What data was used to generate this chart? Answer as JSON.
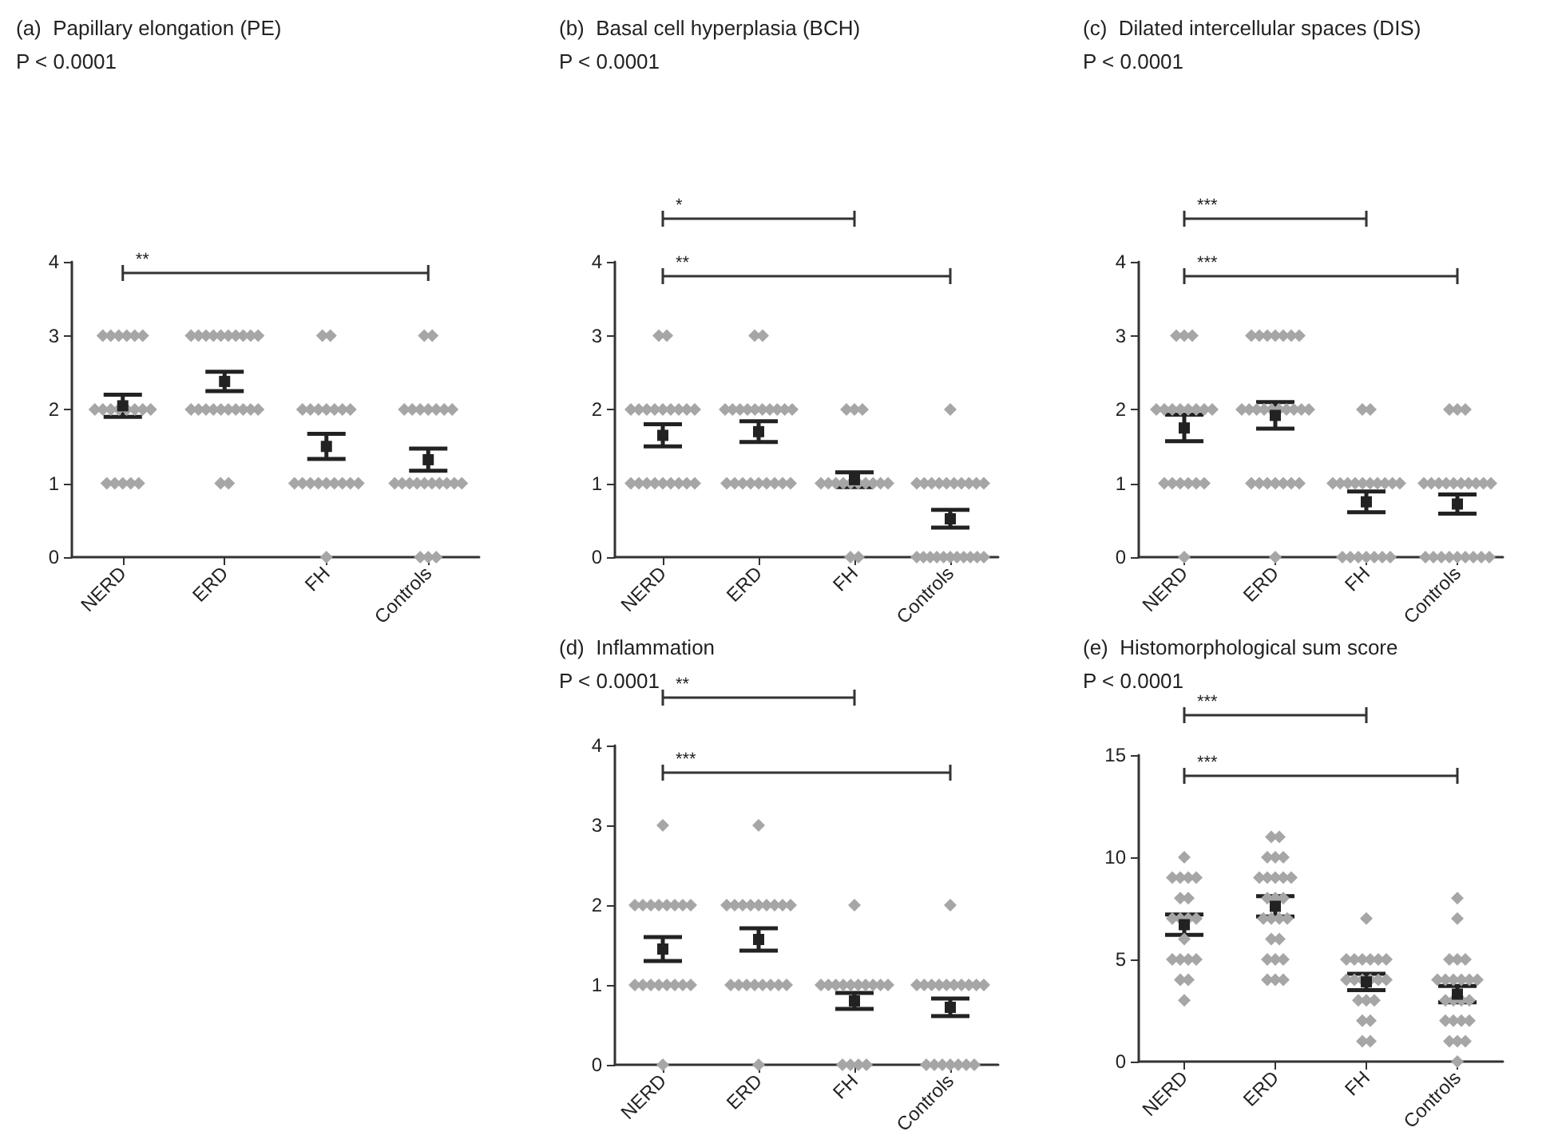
{
  "chart_data": [
    {
      "type": "scatter",
      "title": "(a)  Papillary elongation (PE)",
      "subtitle": "P < 0.0001",
      "categories": [
        "NERD",
        "ERD",
        "FH",
        "Controls"
      ],
      "ylim": [
        0,
        4
      ],
      "yticks": [
        0,
        1,
        2,
        3,
        4
      ],
      "series": [
        {
          "marker": "diamond",
          "color": "#a6a6a6",
          "x": [
            "NERD",
            "NERD",
            "NERD",
            "NERD",
            "NERD",
            "NERD",
            "NERD",
            "NERD",
            "NERD",
            "NERD",
            "NERD",
            "NERD",
            "NERD",
            "NERD",
            "NERD",
            "NERD",
            "NERD",
            "NERD",
            "NERD",
            "ERD",
            "ERD",
            "ERD",
            "ERD",
            "ERD",
            "ERD",
            "ERD",
            "ERD",
            "ERD",
            "ERD",
            "ERD",
            "ERD",
            "ERD",
            "ERD",
            "ERD",
            "ERD",
            "ERD",
            "ERD",
            "ERD",
            "ERD",
            "ERD",
            "ERD",
            "FH",
            "FH",
            "FH",
            "FH",
            "FH",
            "FH",
            "FH",
            "FH",
            "FH",
            "FH",
            "FH",
            "FH",
            "FH",
            "FH",
            "FH",
            "FH",
            "FH",
            "FH",
            "FH",
            "Controls",
            "Controls",
            "Controls",
            "Controls",
            "Controls",
            "Controls",
            "Controls",
            "Controls",
            "Controls",
            "Controls",
            "Controls",
            "Controls",
            "Controls",
            "Controls",
            "Controls",
            "Controls",
            "Controls",
            "Controls",
            "Controls",
            "Controls",
            "Controls",
            "Controls"
          ],
          "values": [
            3,
            3,
            3,
            3,
            3,
            3,
            2,
            2,
            2,
            2,
            2,
            2,
            2,
            2,
            1,
            1,
            1,
            1,
            1,
            3,
            3,
            3,
            3,
            3,
            3,
            3,
            3,
            3,
            3,
            2,
            2,
            2,
            2,
            2,
            2,
            2,
            2,
            2,
            2,
            1,
            1,
            3,
            3,
            2,
            2,
            2,
            2,
            2,
            2,
            2,
            1,
            1,
            1,
            1,
            1,
            1,
            1,
            1,
            1,
            0,
            3,
            3,
            2,
            2,
            2,
            2,
            2,
            2,
            2,
            1,
            1,
            1,
            1,
            1,
            1,
            1,
            1,
            1,
            1,
            0,
            0,
            0
          ]
        },
        {
          "marker": "square",
          "color": "#222222",
          "values": [
            2.05,
            2.38,
            1.5,
            1.32
          ],
          "errors": [
            0.15,
            0.13,
            0.17,
            0.15
          ]
        }
      ],
      "annotations": [
        "**"
      ]
    },
    {
      "type": "scatter",
      "title": "(b)  Basal cell hyperplasia (BCH)",
      "subtitle": "P < 0.0001",
      "categories": [
        "NERD",
        "ERD",
        "FH",
        "Controls"
      ],
      "ylim": [
        0,
        4
      ],
      "yticks": [
        0,
        1,
        2,
        3,
        4
      ],
      "series": [
        {
          "marker": "diamond",
          "color": "#a6a6a6",
          "x": [
            "NERD",
            "NERD",
            "NERD",
            "NERD",
            "NERD",
            "NERD",
            "NERD",
            "NERD",
            "NERD",
            "NERD",
            "NERD",
            "NERD",
            "NERD",
            "NERD",
            "NERD",
            "NERD",
            "NERD",
            "NERD",
            "NERD",
            "NERD",
            "ERD",
            "ERD",
            "ERD",
            "ERD",
            "ERD",
            "ERD",
            "ERD",
            "ERD",
            "ERD",
            "ERD",
            "ERD",
            "ERD",
            "ERD",
            "ERD",
            "ERD",
            "ERD",
            "ERD",
            "ERD",
            "ERD",
            "ERD",
            "ERD",
            "FH",
            "FH",
            "FH",
            "FH",
            "FH",
            "FH",
            "FH",
            "FH",
            "FH",
            "FH",
            "FH",
            "FH",
            "FH",
            "FH",
            "FH",
            "Controls",
            "Controls",
            "Controls",
            "Controls",
            "Controls",
            "Controls",
            "Controls",
            "Controls",
            "Controls",
            "Controls",
            "Controls",
            "Controls",
            "Controls",
            "Controls",
            "Controls",
            "Controls",
            "Controls",
            "Controls",
            "Controls",
            "Controls",
            "Controls",
            "Controls"
          ],
          "values": [
            3,
            3,
            2,
            2,
            2,
            2,
            2,
            2,
            2,
            2,
            2,
            1,
            1,
            1,
            1,
            1,
            1,
            1,
            1,
            1,
            3,
            3,
            2,
            2,
            2,
            2,
            2,
            2,
            2,
            2,
            2,
            2,
            1,
            1,
            1,
            1,
            1,
            1,
            1,
            1,
            1,
            2,
            2,
            2,
            1,
            1,
            1,
            1,
            1,
            1,
            1,
            1,
            1,
            1,
            0,
            0,
            2,
            1,
            1,
            1,
            1,
            1,
            1,
            1,
            1,
            1,
            1,
            0,
            0,
            0,
            0,
            0,
            0,
            0,
            0,
            0,
            0,
            0
          ]
        },
        {
          "marker": "square",
          "color": "#222222",
          "values": [
            1.65,
            1.7,
            1.05,
            0.52
          ],
          "errors": [
            0.15,
            0.14,
            0.1,
            0.12
          ]
        }
      ],
      "annotations": [
        "*",
        "**"
      ]
    },
    {
      "type": "scatter",
      "title": "(c)  Dilated intercellular spaces (DIS)",
      "subtitle": "P < 0.0001",
      "categories": [
        "NERD",
        "ERD",
        "FH",
        "Controls"
      ],
      "ylim": [
        0,
        4
      ],
      "yticks": [
        0,
        1,
        2,
        3,
        4
      ],
      "series": [
        {
          "marker": "diamond",
          "color": "#a6a6a6",
          "x": [
            "NERD",
            "NERD",
            "NERD",
            "NERD",
            "NERD",
            "NERD",
            "NERD",
            "NERD",
            "NERD",
            "NERD",
            "NERD",
            "NERD",
            "NERD",
            "NERD",
            "NERD",
            "NERD",
            "NERD",
            "NERD",
            "ERD",
            "ERD",
            "ERD",
            "ERD",
            "ERD",
            "ERD",
            "ERD",
            "ERD",
            "ERD",
            "ERD",
            "ERD",
            "ERD",
            "ERD",
            "ERD",
            "ERD",
            "ERD",
            "ERD",
            "ERD",
            "ERD",
            "ERD",
            "ERD",
            "ERD",
            "ERD",
            "ERD",
            "ERD",
            "FH",
            "FH",
            "FH",
            "FH",
            "FH",
            "FH",
            "FH",
            "FH",
            "FH",
            "FH",
            "FH",
            "FH",
            "FH",
            "FH",
            "FH",
            "FH",
            "FH",
            "FH",
            "FH",
            "Controls",
            "Controls",
            "Controls",
            "Controls",
            "Controls",
            "Controls",
            "Controls",
            "Controls",
            "Controls",
            "Controls",
            "Controls",
            "Controls",
            "Controls",
            "Controls",
            "Controls",
            "Controls",
            "Controls",
            "Controls",
            "Controls",
            "Controls",
            "Controls",
            "Controls"
          ],
          "values": [
            3,
            3,
            3,
            2,
            2,
            2,
            2,
            2,
            2,
            2,
            2,
            1,
            1,
            1,
            1,
            1,
            1,
            0,
            3,
            3,
            3,
            3,
            3,
            3,
            3,
            2,
            2,
            2,
            2,
            2,
            2,
            2,
            2,
            2,
            2,
            1,
            1,
            1,
            1,
            1,
            1,
            1,
            0,
            2,
            2,
            1,
            1,
            1,
            1,
            1,
            1,
            1,
            1,
            1,
            1,
            0,
            0,
            0,
            0,
            0,
            0,
            0,
            2,
            2,
            2,
            1,
            1,
            1,
            1,
            1,
            1,
            1,
            1,
            1,
            1,
            0,
            0,
            0,
            0,
            0,
            0,
            0,
            0,
            0
          ]
        },
        {
          "marker": "square",
          "color": "#222222",
          "values": [
            1.75,
            1.92,
            0.75,
            0.72
          ],
          "errors": [
            0.18,
            0.18,
            0.14,
            0.13
          ]
        }
      ],
      "annotations": [
        "***",
        "***"
      ]
    },
    {
      "type": "scatter",
      "title": "(d)  Inflammation",
      "subtitle": "P < 0.0001",
      "categories": [
        "NERD",
        "ERD",
        "FH",
        "Controls"
      ],
      "ylim": [
        0,
        4
      ],
      "yticks": [
        0,
        1,
        2,
        3,
        4
      ],
      "series": [
        {
          "marker": "diamond",
          "color": "#a6a6a6",
          "x": [
            "NERD",
            "NERD",
            "NERD",
            "NERD",
            "NERD",
            "NERD",
            "NERD",
            "NERD",
            "NERD",
            "NERD",
            "NERD",
            "NERD",
            "NERD",
            "NERD",
            "NERD",
            "NERD",
            "NERD",
            "NERD",
            "ERD",
            "ERD",
            "ERD",
            "ERD",
            "ERD",
            "ERD",
            "ERD",
            "ERD",
            "ERD",
            "ERD",
            "ERD",
            "ERD",
            "ERD",
            "ERD",
            "ERD",
            "ERD",
            "ERD",
            "ERD",
            "ERD",
            "FH",
            "FH",
            "FH",
            "FH",
            "FH",
            "FH",
            "FH",
            "FH",
            "FH",
            "FH",
            "FH",
            "FH",
            "FH",
            "FH",
            "FH",
            "Controls",
            "Controls",
            "Controls",
            "Controls",
            "Controls",
            "Controls",
            "Controls",
            "Controls",
            "Controls",
            "Controls",
            "Controls",
            "Controls",
            "Controls",
            "Controls",
            "Controls",
            "Controls",
            "Controls",
            "Controls"
          ],
          "values": [
            3,
            2,
            2,
            2,
            2,
            2,
            2,
            2,
            2,
            1,
            1,
            1,
            1,
            1,
            1,
            1,
            1,
            0,
            3,
            2,
            2,
            2,
            2,
            2,
            2,
            2,
            2,
            2,
            1,
            1,
            1,
            1,
            1,
            1,
            1,
            1,
            0,
            2,
            1,
            1,
            1,
            1,
            1,
            1,
            1,
            1,
            1,
            1,
            0,
            0,
            0,
            0,
            2,
            1,
            1,
            1,
            1,
            1,
            1,
            1,
            1,
            1,
            1,
            0,
            0,
            0,
            0,
            0,
            0,
            0
          ]
        },
        {
          "marker": "square",
          "color": "#222222",
          "values": [
            1.45,
            1.57,
            0.8,
            0.72
          ],
          "errors": [
            0.15,
            0.14,
            0.1,
            0.11
          ]
        }
      ],
      "annotations": [
        "**",
        "***"
      ]
    },
    {
      "type": "scatter",
      "title": "(e)  Histomorphological sum score",
      "subtitle": "P < 0.0001",
      "categories": [
        "NERD",
        "ERD",
        "FH",
        "Controls"
      ],
      "ylim": [
        0,
        15
      ],
      "yticks": [
        0,
        5,
        10,
        15
      ],
      "series": [
        {
          "marker": "diamond",
          "color": "#a6a6a6",
          "x": [
            "NERD",
            "NERD",
            "NERD",
            "NERD",
            "NERD",
            "NERD",
            "NERD",
            "NERD",
            "NERD",
            "NERD",
            "NERD",
            "NERD",
            "NERD",
            "NERD",
            "NERD",
            "NERD",
            "NERD",
            "NERD",
            "NERD",
            "ERD",
            "ERD",
            "ERD",
            "ERD",
            "ERD",
            "ERD",
            "ERD",
            "ERD",
            "ERD",
            "ERD",
            "ERD",
            "ERD",
            "ERD",
            "ERD",
            "ERD",
            "ERD",
            "ERD",
            "ERD",
            "ERD",
            "ERD",
            "ERD",
            "ERD",
            "ERD",
            "ERD",
            "ERD",
            "FH",
            "FH",
            "FH",
            "FH",
            "FH",
            "FH",
            "FH",
            "FH",
            "FH",
            "FH",
            "FH",
            "FH",
            "FH",
            "FH",
            "FH",
            "FH",
            "FH",
            "FH",
            "FH",
            "FH",
            "Controls",
            "Controls",
            "Controls",
            "Controls",
            "Controls",
            "Controls",
            "Controls",
            "Controls",
            "Controls",
            "Controls",
            "Controls",
            "Controls",
            "Controls",
            "Controls",
            "Controls",
            "Controls",
            "Controls",
            "Controls",
            "Controls",
            "Controls",
            "Controls",
            "Controls",
            "Controls"
          ],
          "values": [
            10,
            9,
            9,
            9,
            9,
            8,
            8,
            7,
            7,
            7,
            7,
            6,
            5,
            5,
            5,
            5,
            4,
            4,
            3,
            11,
            11,
            10,
            10,
            10,
            9,
            9,
            9,
            9,
            9,
            8,
            8,
            8,
            7,
            7,
            7,
            7,
            6,
            6,
            5,
            5,
            5,
            4,
            4,
            4,
            7,
            5,
            5,
            5,
            5,
            5,
            5,
            4,
            4,
            4,
            4,
            4,
            4,
            3,
            3,
            3,
            2,
            2,
            1,
            1,
            8,
            7,
            5,
            5,
            5,
            4,
            4,
            4,
            4,
            4,
            4,
            3,
            3,
            3,
            3,
            2,
            2,
            2,
            2,
            1,
            1,
            1,
            0
          ]
        },
        {
          "marker": "square",
          "color": "#222222",
          "values": [
            6.7,
            7.6,
            3.9,
            3.3
          ],
          "errors": [
            0.5,
            0.5,
            0.4,
            0.4
          ]
        }
      ],
      "annotations": [
        "***",
        "***"
      ]
    }
  ]
}
